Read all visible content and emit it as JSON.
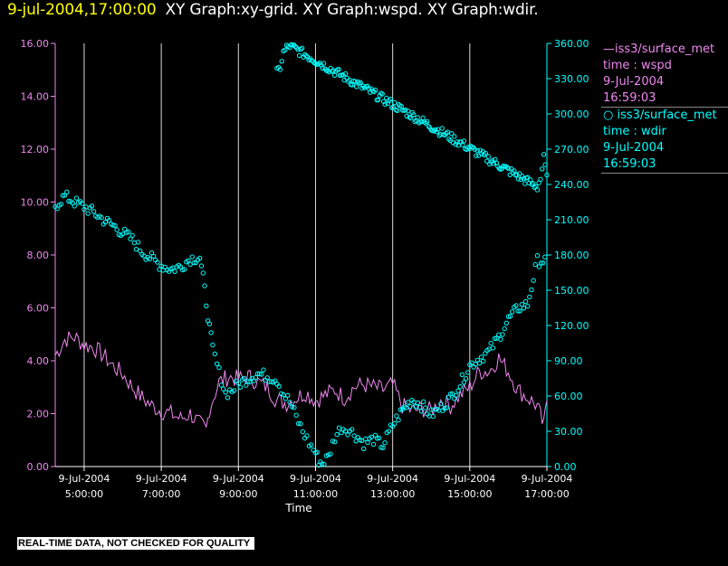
{
  "header": {
    "timestamp": "9-jul-2004,17:00:00",
    "titles": "XY Graph:xy-grid.  XY Graph:wspd.  XY Graph:wdir."
  },
  "colors": {
    "wspd": "#ee88ee",
    "wdir": "#00ffff",
    "grid": "#ffffff",
    "background": "#000000"
  },
  "legend": [
    {
      "line1": "—iss3/surface_met",
      "line2": "time : wspd",
      "line3": "9-Jul-2004",
      "line4": "16:59:03",
      "color": "#ee88ee"
    },
    {
      "line1": "○ iss3/surface_met",
      "line2": "time : wdir",
      "line3": "9-Jul-2004",
      "line4": "16:59:03",
      "color": "#00ffff"
    }
  ],
  "footer": "REAL-TIME DATA, NOT CHECKED FOR QUALITY",
  "chart_data": {
    "type": "line",
    "xlabel": "Time",
    "x_ticks": [
      {
        "date": "9-Jul-2004",
        "time": "5:00:00"
      },
      {
        "date": "9-Jul-2004",
        "time": "7:00:00"
      },
      {
        "date": "9-Jul-2004",
        "time": "9:00:00"
      },
      {
        "date": "9-Jul-2004",
        "time": "11:00:00"
      },
      {
        "date": "9-Jul-2004",
        "time": "13:00:00"
      },
      {
        "date": "9-Jul-2004",
        "time": "15:00:00"
      },
      {
        "date": "9-Jul-2004",
        "time": "17:00:00"
      }
    ],
    "x_range": [
      "4:15",
      "17:00"
    ],
    "y_left": {
      "range": [
        0,
        16
      ],
      "ticks": [
        "0.00",
        "2.00",
        "4.00",
        "6.00",
        "8.00",
        "10.00",
        "12.00",
        "14.00",
        "16.00"
      ]
    },
    "y_right": {
      "range": [
        0,
        360
      ],
      "ticks": [
        "0.00",
        "30.00",
        "60.00",
        "90.00",
        "120.00",
        "150.00",
        "180.00",
        "210.00",
        "240.00",
        "270.00",
        "300.00",
        "330.00",
        "360.00"
      ]
    },
    "grid": "vertical lines at hour ticks",
    "series": [
      {
        "axis": "left",
        "style": "line",
        "points": [
          [
            "4:15",
            4.2
          ],
          [
            "4:30",
            4.8
          ],
          [
            "4:45",
            4.9
          ],
          [
            "5:00",
            4.6
          ],
          [
            "5:15",
            4.5
          ],
          [
            "5:30",
            4.2
          ],
          [
            "5:45",
            3.8
          ],
          [
            "6:00",
            3.5
          ],
          [
            "6:15",
            3.0
          ],
          [
            "6:30",
            2.6
          ],
          [
            "6:45",
            2.3
          ],
          [
            "7:00",
            2.1
          ],
          [
            "7:15",
            2.0
          ],
          [
            "7:30",
            1.8
          ],
          [
            "7:45",
            2.0
          ],
          [
            "8:00",
            1.6
          ],
          [
            "8:10",
            1.4
          ],
          [
            "8:15",
            2.2
          ],
          [
            "8:30",
            3.2
          ],
          [
            "8:45",
            3.4
          ],
          [
            "9:00",
            3.3
          ],
          [
            "9:15",
            3.4
          ],
          [
            "9:30",
            3.2
          ],
          [
            "9:45",
            3.0
          ],
          [
            "10:00",
            2.5
          ],
          [
            "10:15",
            2.4
          ],
          [
            "10:30",
            2.6
          ],
          [
            "10:45",
            2.8
          ],
          [
            "11:00",
            2.5
          ],
          [
            "11:15",
            2.7
          ],
          [
            "11:30",
            2.9
          ],
          [
            "11:45",
            2.6
          ],
          [
            "12:00",
            3.0
          ],
          [
            "12:15",
            3.1
          ],
          [
            "12:30",
            3.0
          ],
          [
            "12:45",
            2.9
          ],
          [
            "13:00",
            3.1
          ],
          [
            "13:15",
            2.3
          ],
          [
            "13:30",
            2.1
          ],
          [
            "13:45",
            2.2
          ],
          [
            "14:00",
            2.1
          ],
          [
            "14:15",
            2.5
          ],
          [
            "14:30",
            2.3
          ],
          [
            "14:45",
            2.7
          ],
          [
            "15:00",
            3.0
          ],
          [
            "15:15",
            3.6
          ],
          [
            "15:30",
            3.6
          ],
          [
            "15:45",
            4.1
          ],
          [
            "16:00",
            3.6
          ],
          [
            "16:15",
            2.9
          ],
          [
            "16:30",
            2.6
          ],
          [
            "16:45",
            2.3
          ],
          [
            "16:55",
            1.5
          ],
          [
            "17:00",
            2.5
          ]
        ]
      },
      {
        "axis": "right",
        "style": "circles",
        "points": [
          [
            "4:15",
            222
          ],
          [
            "4:30",
            230
          ],
          [
            "4:45",
            225
          ],
          [
            "5:00",
            221
          ],
          [
            "5:15",
            216
          ],
          [
            "5:30",
            210
          ],
          [
            "5:45",
            205
          ],
          [
            "6:00",
            199
          ],
          [
            "6:15",
            193
          ],
          [
            "6:30",
            183
          ],
          [
            "6:45",
            177
          ],
          [
            "7:00",
            171
          ],
          [
            "7:15",
            168
          ],
          [
            "7:30",
            170
          ],
          [
            "7:45",
            177
          ],
          [
            "8:00",
            178
          ],
          [
            "8:05",
            160
          ],
          [
            "8:10",
            140
          ],
          [
            "8:15",
            118
          ],
          [
            "8:20",
            100
          ],
          [
            "8:30",
            80
          ],
          [
            "8:40",
            62
          ],
          [
            "8:50",
            65
          ],
          [
            "9:00",
            70
          ],
          [
            "9:15",
            75
          ],
          [
            "9:30",
            79
          ],
          [
            "9:45",
            77
          ],
          [
            "10:00",
            74
          ],
          [
            "10:10",
            62
          ],
          [
            "10:20",
            55
          ],
          [
            "10:30",
            42
          ],
          [
            "10:40",
            30
          ],
          [
            "10:50",
            20
          ],
          [
            "11:00",
            12
          ],
          [
            "11:05",
            5
          ],
          [
            "11:10",
            3
          ],
          [
            "11:20",
            8
          ],
          [
            "11:30",
            25
          ],
          [
            "11:40",
            33
          ],
          [
            "11:50",
            32
          ],
          [
            "12:00",
            28
          ],
          [
            "12:15",
            20
          ],
          [
            "12:30",
            23
          ],
          [
            "12:45",
            18
          ],
          [
            "13:00",
            35
          ],
          [
            "13:15",
            48
          ],
          [
            "13:30",
            57
          ],
          [
            "13:45",
            52
          ],
          [
            "14:00",
            44
          ],
          [
            "14:15",
            50
          ],
          [
            "14:30",
            58
          ],
          [
            "14:45",
            70
          ],
          [
            "15:00",
            86
          ],
          [
            "15:15",
            92
          ],
          [
            "15:30",
            98
          ],
          [
            "15:45",
            110
          ],
          [
            "16:00",
            125
          ],
          [
            "16:15",
            135
          ],
          [
            "16:30",
            138
          ],
          [
            "16:45",
            175
          ],
          [
            "17:00",
            175
          ],
          [
            "10:00",
            335
          ],
          [
            "10:05",
            340
          ],
          [
            "10:10",
            352
          ],
          [
            "10:15",
            356
          ],
          [
            "10:20",
            358
          ],
          [
            "16:45",
            238
          ],
          [
            "16:50",
            245
          ],
          [
            "16:55",
            262
          ],
          [
            "17:00",
            248
          ]
        ]
      }
    ]
  }
}
